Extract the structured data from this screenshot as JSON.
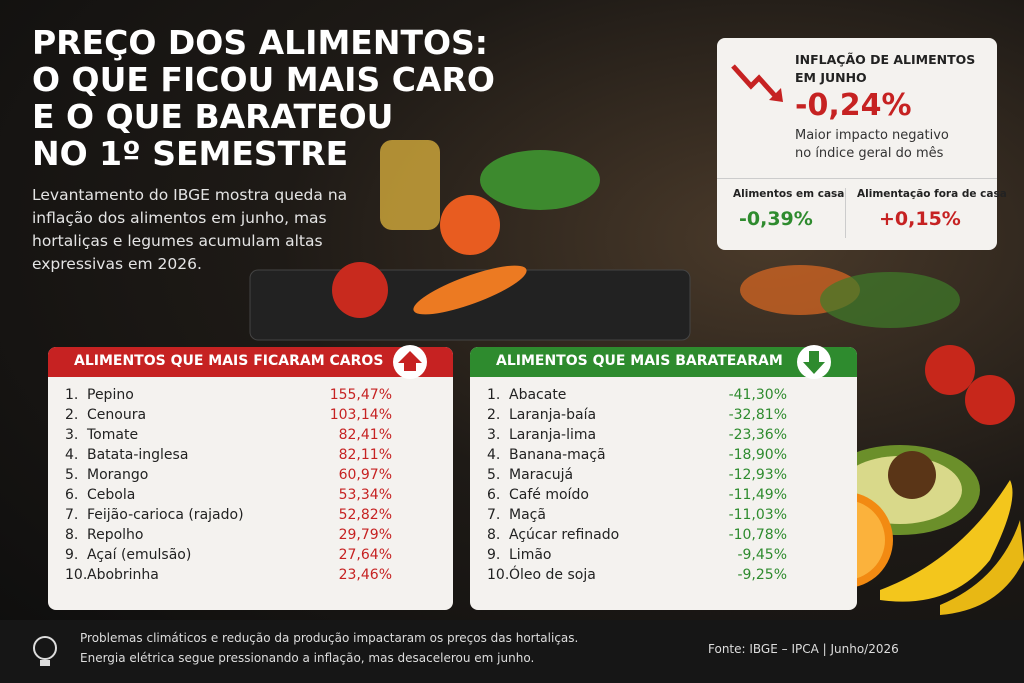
{
  "header": {
    "title_lines": [
      "PREÇO DOS ALIMENTOS:",
      "O QUE FICOU MAIS CARO",
      "E O QUE BARATEOU",
      "NO 1º SEMESTRE"
    ],
    "subtitle_lines": [
      "Levantamento do IBGE mostra queda na",
      "inflação dos alimentos em junho, mas",
      "hortaliças e legumes acumulam altas",
      "expressivas em 2026."
    ]
  },
  "inflation": {
    "title_lines": [
      "INFLAÇÃO DE ALIMENTOS",
      "EM JUNHO"
    ],
    "value": "-0,24%",
    "note_lines": [
      "Maior impacto negativo",
      "no índice geral do mês"
    ],
    "items": [
      {
        "label": "Alimentos em casa",
        "value": "-0,39%"
      },
      {
        "label": "Alimentação fora de casa",
        "value": "+0,15%"
      }
    ]
  },
  "tables": [
    {
      "title": "ALIMENTOS QUE MAIS FICARAM CAROS",
      "rows": [
        [
          "1.",
          "Pepino",
          "155,47%"
        ],
        [
          "2.",
          "Cenoura",
          "103,14%"
        ],
        [
          "3.",
          "Tomate",
          "82,41%"
        ],
        [
          "4.",
          "Batata-inglesa",
          "82,11%"
        ],
        [
          "5.",
          "Morango",
          "60,97%"
        ],
        [
          "6.",
          "Cebola",
          "53,34%"
        ],
        [
          "7.",
          "Feijão-carioca (rajado)",
          "52,82%"
        ],
        [
          "8.",
          "Repolho",
          "29,79%"
        ],
        [
          "9.",
          "Açaí (emulsão)",
          "27,64%"
        ],
        [
          "10.",
          "Abobrinha",
          "23,46%"
        ]
      ]
    },
    {
      "title": "ALIMENTOS QUE MAIS BARATEARAM",
      "rows": [
        [
          "1.",
          "Abacate",
          "-41,30%"
        ],
        [
          "2.",
          "Laranja-baía",
          "-32,81%"
        ],
        [
          "3.",
          "Laranja-lima",
          "-23,36%"
        ],
        [
          "4.",
          "Banana-maçã",
          "-18,90%"
        ],
        [
          "5.",
          "Maracujá",
          "-12,93%"
        ],
        [
          "6.",
          "Café moído",
          "-11,49%"
        ],
        [
          "7.",
          "Maçã",
          "-11,03%"
        ],
        [
          "8.",
          "Açúcar refinado",
          "-10,78%"
        ],
        [
          "9.",
          "Limão",
          "-9,45%"
        ],
        [
          "10.",
          "Óleo de soja",
          "-9,25%"
        ]
      ]
    }
  ],
  "footer": {
    "lines": [
      "Problemas climáticos e redução da produção impactaram os preços das hortaliças.",
      "Energia elétrica segue pressionando a inflação, mas desacelerou em junho."
    ],
    "source": "Fonte: IBGE – IPCA | Junho/2026"
  }
}
